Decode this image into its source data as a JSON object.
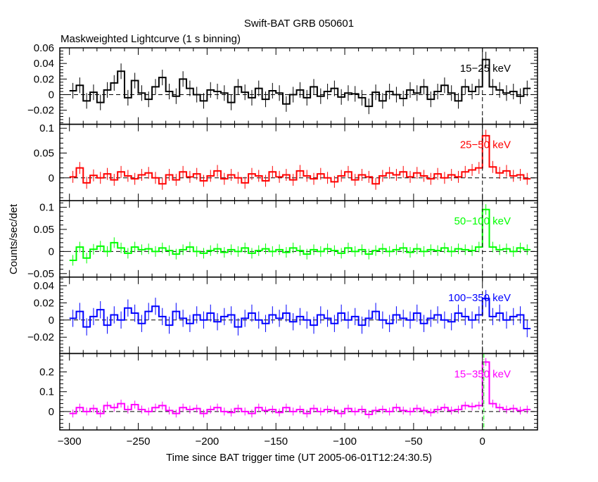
{
  "chart_data": {
    "type": "line",
    "title": "Swift-BAT GRB 050601",
    "subtitle": "Maskweighted Lightcurve (1 s binning)",
    "xlabel": "Time since BAT trigger time (UT 2005-06-01T12:24:30.5)",
    "ylabel": "Counts/sec/det",
    "xlim": [
      -307,
      40
    ],
    "x_ticks": [
      -300,
      -250,
      -200,
      -150,
      -100,
      -50,
      0
    ],
    "x_tick_labels": [
      "−300",
      "−250",
      "−200",
      "−150",
      "−100",
      "−50",
      "0"
    ],
    "x_start": -300,
    "x_step": 5,
    "trigger_time": 0,
    "panels": [
      {
        "name": "15-25 keV",
        "label": "15−25 keV",
        "color": "#000000",
        "ylim": [
          -0.038,
          0.06
        ],
        "yticks": [
          -0.02,
          0,
          0.02,
          0.04,
          0.06
        ],
        "ytick_labels": [
          "−0.02",
          "0",
          "0.02",
          "0.04",
          "0.06"
        ],
        "error": 0.01,
        "values": [
          0.005,
          0.012,
          -0.008,
          0.003,
          -0.01,
          0.006,
          0.015,
          0.03,
          -0.004,
          0.018,
          0.002,
          -0.006,
          0.01,
          0.022,
          0.004,
          -0.002,
          0.02,
          0.008,
          0.0,
          -0.008,
          0.006,
          0.004,
          0.002,
          -0.01,
          0.01,
          0.003,
          -0.004,
          0.008,
          -0.006,
          0.005,
          0.002,
          -0.012,
          0.0,
          0.006,
          -0.004,
          0.01,
          -0.002,
          0.004,
          0.008,
          -0.003,
          0.002,
          0.001,
          -0.004,
          -0.015,
          0.003,
          -0.008,
          0.004,
          0.0,
          -0.005,
          0.006,
          0.002,
          0.01,
          -0.006,
          0.004,
          0.012,
          0.002,
          -0.008,
          0.01,
          0.004,
          0.01,
          0.045,
          0.01,
          0.006,
          0.002,
          0.004,
          -0.002,
          0.008
        ]
      },
      {
        "name": "25-50 keV",
        "label": "25−50 keV",
        "color": "#ff0000",
        "ylim": [
          -0.046,
          0.108
        ],
        "yticks": [
          0,
          0.05,
          0.1
        ],
        "ytick_labels": [
          "0",
          "0.05",
          "0.1"
        ],
        "error": 0.012,
        "values": [
          0.002,
          0.02,
          -0.01,
          0.005,
          0.0,
          0.008,
          -0.004,
          0.012,
          0.004,
          -0.002,
          0.006,
          0.01,
          0.0,
          -0.012,
          0.006,
          -0.004,
          0.012,
          0.002,
          0.008,
          -0.006,
          0.004,
          0.014,
          -0.002,
          0.006,
          0.0,
          -0.01,
          0.008,
          0.004,
          -0.006,
          0.012,
          0.002,
          0.006,
          -0.004,
          0.014,
          0.004,
          -0.002,
          0.008,
          0.0,
          -0.008,
          0.004,
          0.012,
          -0.004,
          0.006,
          0.002,
          -0.012,
          0.004,
          0.01,
          0.006,
          0.012,
          0.002,
          0.01,
          0.004,
          -0.002,
          0.008,
          0.0,
          0.006,
          0.002,
          0.012,
          0.016,
          0.02,
          0.085,
          0.022,
          0.01,
          0.014,
          0.004,
          0.006,
          -0.002
        ]
      },
      {
        "name": "50-100 keV",
        "label": "50−100 keV",
        "color": "#00ff00",
        "ylim": [
          -0.058,
          0.115
        ],
        "yticks": [
          -0.05,
          0,
          0.05,
          0.1
        ],
        "ytick_labels": [
          "−0.05",
          "0",
          "0.05",
          "0.1"
        ],
        "error": 0.012,
        "values": [
          -0.02,
          0.01,
          -0.015,
          0.005,
          0.012,
          0.0,
          0.02,
          0.008,
          -0.004,
          0.01,
          0.004,
          0.006,
          0.0,
          0.008,
          0.002,
          -0.006,
          0.004,
          0.01,
          0.0,
          -0.004,
          0.002,
          0.006,
          -0.002,
          0.004,
          0.0,
          0.008,
          -0.004,
          0.002,
          0.006,
          0.0,
          0.004,
          -0.002,
          0.008,
          0.002,
          -0.006,
          0.004,
          0.0,
          0.006,
          0.002,
          -0.004,
          0.008,
          0.0,
          0.004,
          -0.006,
          0.002,
          0.006,
          0.0,
          0.004,
          0.008,
          -0.002,
          0.006,
          0.0,
          0.004,
          0.002,
          0.008,
          0.0,
          0.006,
          0.004,
          0.002,
          0.01,
          0.095,
          0.01,
          0.004,
          0.006,
          0.0,
          0.008,
          0.004
        ]
      },
      {
        "name": "100-350 keV",
        "label": "100−350 keV",
        "color": "#0000ff",
        "ylim": [
          -0.039,
          0.05
        ],
        "yticks": [
          -0.02,
          0,
          0.02,
          0.04
        ],
        "ytick_labels": [
          "−0.02",
          "0",
          "0.02",
          "0.04"
        ],
        "error": 0.01,
        "values": [
          0.002,
          0.01,
          -0.008,
          0.004,
          0.012,
          -0.006,
          0.006,
          0.0,
          0.014,
          0.008,
          -0.004,
          0.01,
          0.016,
          0.004,
          -0.006,
          0.01,
          0.002,
          -0.004,
          0.006,
          0.0,
          0.008,
          -0.002,
          0.004,
          0.006,
          -0.008,
          0.002,
          0.008,
          0.0,
          -0.004,
          0.006,
          0.002,
          0.008,
          -0.002,
          0.004,
          0.0,
          -0.006,
          0.006,
          0.002,
          -0.004,
          0.008,
          0.0,
          0.004,
          -0.006,
          0.002,
          0.01,
          0.0,
          -0.004,
          0.006,
          0.002,
          0.0,
          0.008,
          -0.004,
          0.002,
          0.006,
          0.0,
          -0.002,
          0.008,
          0.004,
          0.0,
          0.006,
          0.025,
          0.004,
          0.008,
          0.0,
          0.004,
          0.006,
          -0.01
        ]
      },
      {
        "name": "15-350 keV",
        "label": "15−350 keV",
        "color": "#ff00ff",
        "ylim": [
          -0.093,
          0.293
        ],
        "yticks": [
          0,
          0.1,
          0.2
        ],
        "ytick_labels": [
          "0",
          "0.1",
          "0.2"
        ],
        "error": 0.02,
        "values": [
          -0.01,
          0.02,
          0.0,
          0.015,
          -0.01,
          0.03,
          0.02,
          0.04,
          0.01,
          0.035,
          0.01,
          0.0,
          0.02,
          0.03,
          0.005,
          -0.01,
          0.02,
          0.01,
          0.015,
          -0.01,
          0.01,
          0.02,
          0.0,
          -0.005,
          0.015,
          0.0,
          -0.01,
          0.02,
          0.005,
          0.01,
          -0.005,
          0.02,
          0.0,
          0.01,
          -0.01,
          0.015,
          0.0,
          0.01,
          0.005,
          -0.01,
          0.015,
          0.0,
          0.01,
          -0.015,
          0.005,
          0.01,
          0.0,
          0.02,
          0.005,
          0.0,
          0.015,
          0.005,
          -0.005,
          0.01,
          0.02,
          0.005,
          0.01,
          0.03,
          0.025,
          0.03,
          0.25,
          0.04,
          0.02,
          0.01,
          0.015,
          0.005,
          0.01
        ]
      }
    ]
  }
}
